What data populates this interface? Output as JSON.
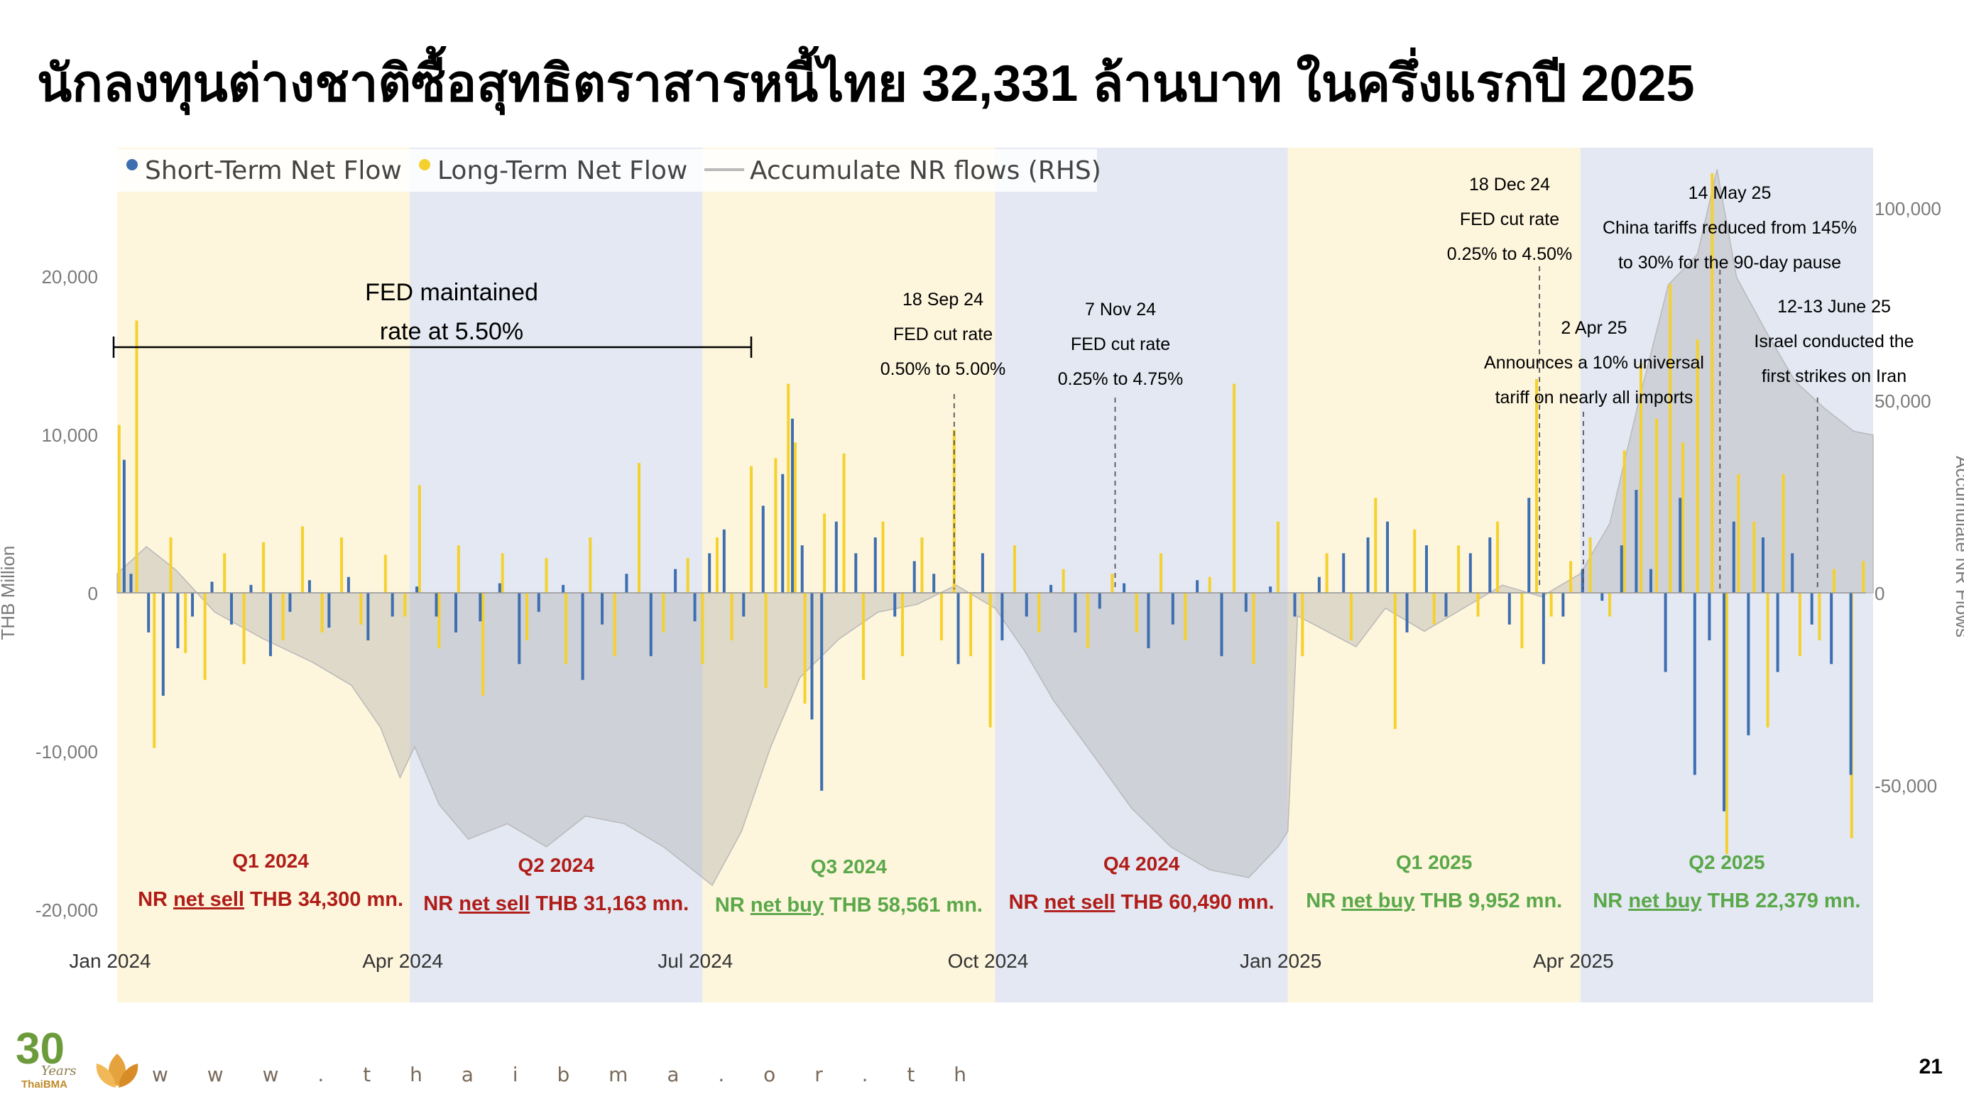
{
  "slide": {
    "title": "นักลงทุนต่างชาติซื้อสุทธิตราสารหนี้ไทย 32,331 ล้านบาท ในครึ่งแรกปี 2025",
    "footer_url": "w w w . t h a i b m a . o r . t h",
    "page_number": "21",
    "logo_number": "30",
    "logo_word": "Years",
    "logo_brand": "ThaiBMA"
  },
  "colors": {
    "short_term": "#3d6eb0",
    "long_term": "#f5d12e",
    "accumulate_line": "#b9b9b9",
    "accumulate_fill": "#a7a7a7",
    "band_yellow": "#fdf5dc",
    "band_blue": "#e3e8f3",
    "sell_red": "#b01d18",
    "buy_green": "#5aa849",
    "axis_text": "#7a7a7a"
  },
  "chart_data": {
    "type": "bar",
    "legend_position": "top-left",
    "legend": [
      "Short-Term Net Flow",
      "Long-Term Net Flow",
      "Accumulate NR flows (RHS)"
    ],
    "ylabel": "THB Million",
    "y2label": "Accumulate NR Flows",
    "ylim": [
      -20000,
      27000
    ],
    "y2lim": [
      -80000,
      110000
    ],
    "y_ticks": [
      "-20,000",
      "-10,000",
      "0",
      "10,000",
      "20,000"
    ],
    "y_tick_values": [
      -20000,
      -10000,
      0,
      10000,
      20000
    ],
    "y2_ticks": [
      "-50,000",
      "0",
      "50,000",
      "100,000"
    ],
    "y2_tick_values": [
      -50000,
      0,
      50000,
      100000
    ],
    "x_ticks": [
      "Jan 2024",
      "Apr 2024",
      "Jul 2024",
      "Oct 2024",
      "Jan 2025",
      "Apr 2025"
    ],
    "x_tick_months": [
      0,
      3,
      6,
      9,
      12,
      15
    ],
    "x_range_months": [
      0,
      18
    ],
    "grid": false,
    "quarters": [
      {
        "label": "Q1 2024",
        "text_prefix": "NR ",
        "text_underlined": "net sell",
        "text_suffix": " THB 34,300 mn.",
        "trend": "sell",
        "start": 0,
        "end": 3,
        "band": "yellow"
      },
      {
        "label": "Q2 2024",
        "text_prefix": "NR ",
        "text_underlined": "net sell",
        "text_suffix": " THB 31,163 mn.",
        "trend": "sell",
        "start": 3,
        "end": 6,
        "band": "blue"
      },
      {
        "label": "Q3 2024",
        "text_prefix": "NR ",
        "text_underlined": "net buy",
        "text_suffix": " THB 58,561 mn.",
        "trend": "buy",
        "start": 6,
        "end": 9,
        "band": "yellow"
      },
      {
        "label": "Q4 2024",
        "text_prefix": "NR ",
        "text_underlined": "net sell",
        "text_suffix": " THB 60,490 mn.",
        "trend": "sell",
        "start": 9,
        "end": 12,
        "band": "blue"
      },
      {
        "label": "Q1 2025",
        "text_prefix": "NR ",
        "text_underlined": "net buy",
        "text_suffix": " THB 9,952 mn.",
        "trend": "buy",
        "start": 12,
        "end": 15,
        "band": "yellow"
      },
      {
        "label": "Q2 2025",
        "text_prefix": "NR ",
        "text_underlined": "net buy",
        "text_suffix": " THB 22,379 mn.",
        "trend": "buy",
        "start": 15,
        "end": 18,
        "band": "blue"
      }
    ],
    "fed_range": {
      "start": 0,
      "end": 6,
      "lines": [
        "FED maintained",
        "rate at 5.50%"
      ]
    },
    "annotations": [
      {
        "month": 8.58,
        "lines": [
          "18 Sep 24",
          "FED cut rate",
          "0.50% to 5.00%"
        ]
      },
      {
        "month": 10.23,
        "lines": [
          "7 Nov 24",
          "FED cut rate",
          "0.25% to 4.75%"
        ]
      },
      {
        "month": 14.58,
        "lines": [
          "18 Dec 24",
          "FED cut rate",
          "0.25% to 4.50%"
        ]
      },
      {
        "month": 15.03,
        "lines": [
          "2 Apr 25",
          "Announces a 10% universal",
          "tariff on nearly all imports"
        ]
      },
      {
        "month": 16.43,
        "lines": [
          "14 May 25",
          "China tariffs reduced from 145%",
          "to 30% for the 90-day pause"
        ]
      },
      {
        "month": 17.43,
        "lines": [
          "12-13 June 25",
          "Israel conducted the",
          "first strikes on Iran"
        ]
      }
    ],
    "short_term_series": [
      {
        "month": 0.05,
        "value": 8400
      },
      {
        "month": 0.12,
        "value": 1200
      },
      {
        "month": 0.3,
        "value": -2500
      },
      {
        "month": 0.45,
        "value": -6500
      },
      {
        "month": 0.6,
        "value": -3500
      },
      {
        "month": 0.75,
        "value": -1500
      },
      {
        "month": 0.95,
        "value": 700
      },
      {
        "month": 1.15,
        "value": -2000
      },
      {
        "month": 1.35,
        "value": 500
      },
      {
        "month": 1.55,
        "value": -4000
      },
      {
        "month": 1.75,
        "value": -1200
      },
      {
        "month": 1.95,
        "value": 800
      },
      {
        "month": 2.15,
        "value": -2200
      },
      {
        "month": 2.35,
        "value": 1000
      },
      {
        "month": 2.55,
        "value": -3000
      },
      {
        "month": 2.8,
        "value": -1500
      },
      {
        "month": 3.05,
        "value": 400
      },
      {
        "month": 3.25,
        "value": -1500
      },
      {
        "month": 3.45,
        "value": -2500
      },
      {
        "month": 3.7,
        "value": -1800
      },
      {
        "month": 3.9,
        "value": 600
      },
      {
        "month": 4.1,
        "value": -4500
      },
      {
        "month": 4.3,
        "value": -1200
      },
      {
        "month": 4.55,
        "value": 500
      },
      {
        "month": 4.75,
        "value": -5500
      },
      {
        "month": 4.95,
        "value": -2000
      },
      {
        "month": 5.2,
        "value": 1200
      },
      {
        "month": 5.45,
        "value": -4000
      },
      {
        "month": 5.7,
        "value": 1500
      },
      {
        "month": 5.9,
        "value": -1800
      },
      {
        "month": 6.05,
        "value": 2500
      },
      {
        "month": 6.2,
        "value": 4000
      },
      {
        "month": 6.4,
        "value": -1500
      },
      {
        "month": 6.6,
        "value": 5500
      },
      {
        "month": 6.8,
        "value": 7500
      },
      {
        "month": 6.9,
        "value": 11000
      },
      {
        "month": 7.0,
        "value": 3000
      },
      {
        "month": 7.1,
        "value": -8000
      },
      {
        "month": 7.2,
        "value": -12500
      },
      {
        "month": 7.35,
        "value": 4500
      },
      {
        "month": 7.55,
        "value": 2500
      },
      {
        "month": 7.75,
        "value": 3500
      },
      {
        "month": 7.95,
        "value": -1500
      },
      {
        "month": 8.15,
        "value": 2000
      },
      {
        "month": 8.35,
        "value": 1200
      },
      {
        "month": 8.6,
        "value": -4500
      },
      {
        "month": 8.85,
        "value": 2500
      },
      {
        "month": 9.05,
        "value": -3000
      },
      {
        "month": 9.3,
        "value": -1500
      },
      {
        "month": 9.55,
        "value": 500
      },
      {
        "month": 9.8,
        "value": -2500
      },
      {
        "month": 10.05,
        "value": -1000
      },
      {
        "month": 10.3,
        "value": 600
      },
      {
        "month": 10.55,
        "value": -3500
      },
      {
        "month": 10.8,
        "value": -2000
      },
      {
        "month": 11.05,
        "value": 800
      },
      {
        "month": 11.3,
        "value": -4000
      },
      {
        "month": 11.55,
        "value": -1200
      },
      {
        "month": 11.8,
        "value": 400
      },
      {
        "month": 12.05,
        "value": -1500
      },
      {
        "month": 12.3,
        "value": 1000
      },
      {
        "month": 12.55,
        "value": 2500
      },
      {
        "month": 12.8,
        "value": 3500
      },
      {
        "month": 13.0,
        "value": 4500
      },
      {
        "month": 13.2,
        "value": -2500
      },
      {
        "month": 13.4,
        "value": 3000
      },
      {
        "month": 13.6,
        "value": -1500
      },
      {
        "month": 13.85,
        "value": 2500
      },
      {
        "month": 14.05,
        "value": 3500
      },
      {
        "month": 14.25,
        "value": -2000
      },
      {
        "month": 14.45,
        "value": 6000
      },
      {
        "month": 14.6,
        "value": -4500
      },
      {
        "month": 14.8,
        "value": -1500
      },
      {
        "month": 15.0,
        "value": 1500
      },
      {
        "month": 15.2,
        "value": -500
      },
      {
        "month": 15.4,
        "value": 3000
      },
      {
        "month": 15.55,
        "value": 6500
      },
      {
        "month": 15.7,
        "value": 1500
      },
      {
        "month": 15.85,
        "value": -5000
      },
      {
        "month": 16.0,
        "value": 6000
      },
      {
        "month": 16.15,
        "value": -11500
      },
      {
        "month": 16.3,
        "value": -3000
      },
      {
        "month": 16.45,
        "value": -13800
      },
      {
        "month": 16.55,
        "value": 4500
      },
      {
        "month": 16.7,
        "value": -9000
      },
      {
        "month": 16.85,
        "value": 3500
      },
      {
        "month": 17.0,
        "value": -5000
      },
      {
        "month": 17.15,
        "value": 2500
      },
      {
        "month": 17.35,
        "value": -2000
      },
      {
        "month": 17.55,
        "value": -4500
      },
      {
        "month": 17.75,
        "value": -11500
      }
    ],
    "long_term_series": [
      {
        "month": 0.02,
        "value": 10600
      },
      {
        "month": 0.2,
        "value": 17200
      },
      {
        "month": 0.38,
        "value": -9800
      },
      {
        "month": 0.55,
        "value": 3500
      },
      {
        "month": 0.7,
        "value": -3800
      },
      {
        "month": 0.9,
        "value": -5500
      },
      {
        "month": 1.1,
        "value": 2500
      },
      {
        "month": 1.3,
        "value": -4500
      },
      {
        "month": 1.5,
        "value": 3200
      },
      {
        "month": 1.7,
        "value": -3000
      },
      {
        "month": 1.9,
        "value": 4200
      },
      {
        "month": 2.1,
        "value": -2500
      },
      {
        "month": 2.3,
        "value": 3500
      },
      {
        "month": 2.5,
        "value": -2000
      },
      {
        "month": 2.75,
        "value": 2400
      },
      {
        "month": 2.95,
        "value": -1500
      },
      {
        "month": 3.1,
        "value": 6800
      },
      {
        "month": 3.3,
        "value": -3500
      },
      {
        "month": 3.5,
        "value": 3000
      },
      {
        "month": 3.75,
        "value": -6500
      },
      {
        "month": 3.95,
        "value": 2500
      },
      {
        "month": 4.2,
        "value": -3000
      },
      {
        "month": 4.4,
        "value": 2200
      },
      {
        "month": 4.6,
        "value": -4500
      },
      {
        "month": 4.85,
        "value": 3500
      },
      {
        "month": 5.1,
        "value": -4000
      },
      {
        "month": 5.35,
        "value": 8200
      },
      {
        "month": 5.6,
        "value": -2500
      },
      {
        "month": 5.85,
        "value": 2200
      },
      {
        "month": 6.0,
        "value": -4500
      },
      {
        "month": 6.15,
        "value": 3500
      },
      {
        "month": 6.3,
        "value": -3000
      },
      {
        "month": 6.5,
        "value": 8000
      },
      {
        "month": 6.65,
        "value": -6000
      },
      {
        "month": 6.75,
        "value": 8500
      },
      {
        "month": 6.88,
        "value": 13200
      },
      {
        "month": 6.95,
        "value": 9500
      },
      {
        "month": 7.05,
        "value": -7000
      },
      {
        "month": 7.25,
        "value": 5000
      },
      {
        "month": 7.45,
        "value": 8800
      },
      {
        "month": 7.65,
        "value": -5500
      },
      {
        "month": 7.85,
        "value": 4500
      },
      {
        "month": 8.05,
        "value": -4000
      },
      {
        "month": 8.25,
        "value": 3500
      },
      {
        "month": 8.45,
        "value": -3000
      },
      {
        "month": 8.58,
        "value": 10300
      },
      {
        "month": 8.75,
        "value": -4000
      },
      {
        "month": 8.95,
        "value": -8500
      },
      {
        "month": 9.2,
        "value": 3000
      },
      {
        "month": 9.45,
        "value": -2500
      },
      {
        "month": 9.7,
        "value": 1500
      },
      {
        "month": 9.95,
        "value": -3500
      },
      {
        "month": 10.2,
        "value": 1200
      },
      {
        "month": 10.45,
        "value": -2500
      },
      {
        "month": 10.7,
        "value": 2500
      },
      {
        "month": 10.95,
        "value": -3000
      },
      {
        "month": 11.2,
        "value": 1000
      },
      {
        "month": 11.45,
        "value": 13200
      },
      {
        "month": 11.65,
        "value": -4500
      },
      {
        "month": 11.9,
        "value": 4500
      },
      {
        "month": 12.15,
        "value": -4000
      },
      {
        "month": 12.4,
        "value": 2500
      },
      {
        "month": 12.65,
        "value": -3000
      },
      {
        "month": 12.9,
        "value": 6000
      },
      {
        "month": 13.1,
        "value": -8600
      },
      {
        "month": 13.3,
        "value": 4000
      },
      {
        "month": 13.5,
        "value": -2000
      },
      {
        "month": 13.75,
        "value": 3000
      },
      {
        "month": 13.95,
        "value": -1500
      },
      {
        "month": 14.15,
        "value": 4500
      },
      {
        "month": 14.4,
        "value": -3500
      },
      {
        "month": 14.55,
        "value": 13500
      },
      {
        "month": 14.7,
        "value": -1500
      },
      {
        "month": 14.9,
        "value": 2000
      },
      {
        "month": 15.1,
        "value": 3500
      },
      {
        "month": 15.3,
        "value": -1500
      },
      {
        "month": 15.45,
        "value": 9000
      },
      {
        "month": 15.62,
        "value": 14500
      },
      {
        "month": 15.78,
        "value": 11000
      },
      {
        "month": 15.92,
        "value": 19500
      },
      {
        "month": 16.05,
        "value": 9500
      },
      {
        "month": 16.2,
        "value": 16000
      },
      {
        "month": 16.35,
        "value": 26500
      },
      {
        "month": 16.5,
        "value": -16500
      },
      {
        "month": 16.62,
        "value": 7500
      },
      {
        "month": 16.78,
        "value": 4500
      },
      {
        "month": 16.92,
        "value": -8500
      },
      {
        "month": 17.08,
        "value": 7500
      },
      {
        "month": 17.25,
        "value": -4000
      },
      {
        "month": 17.45,
        "value": -3000
      },
      {
        "month": 17.6,
        "value": 1500
      },
      {
        "month": 17.78,
        "value": -15500
      },
      {
        "month": 17.9,
        "value": 2000
      }
    ],
    "accumulate_series": [
      {
        "month": 0,
        "value": 5000
      },
      {
        "month": 0.3,
        "value": 12000
      },
      {
        "month": 0.6,
        "value": 6000
      },
      {
        "month": 1.0,
        "value": -5000
      },
      {
        "month": 1.5,
        "value": -12000
      },
      {
        "month": 2.0,
        "value": -18000
      },
      {
        "month": 2.4,
        "value": -24000
      },
      {
        "month": 2.7,
        "value": -35000
      },
      {
        "month": 2.9,
        "value": -48000
      },
      {
        "month": 3.05,
        "value": -40000
      },
      {
        "month": 3.3,
        "value": -55000
      },
      {
        "month": 3.6,
        "value": -64000
      },
      {
        "month": 4.0,
        "value": -60000
      },
      {
        "month": 4.4,
        "value": -66000
      },
      {
        "month": 4.8,
        "value": -58000
      },
      {
        "month": 5.2,
        "value": -60000
      },
      {
        "month": 5.6,
        "value": -66000
      },
      {
        "month": 5.9,
        "value": -72000
      },
      {
        "month": 6.1,
        "value": -76000
      },
      {
        "month": 6.4,
        "value": -62000
      },
      {
        "month": 6.7,
        "value": -40000
      },
      {
        "month": 7.0,
        "value": -22000
      },
      {
        "month": 7.4,
        "value": -12000
      },
      {
        "month": 7.8,
        "value": -5000
      },
      {
        "month": 8.2,
        "value": -3000
      },
      {
        "month": 8.6,
        "value": 2000
      },
      {
        "month": 9.0,
        "value": -4000
      },
      {
        "month": 9.3,
        "value": -15000
      },
      {
        "month": 9.6,
        "value": -28000
      },
      {
        "month": 10.0,
        "value": -42000
      },
      {
        "month": 10.4,
        "value": -56000
      },
      {
        "month": 10.8,
        "value": -66000
      },
      {
        "month": 11.2,
        "value": -72000
      },
      {
        "month": 11.6,
        "value": -74000
      },
      {
        "month": 11.9,
        "value": -66000
      },
      {
        "month": 12.0,
        "value": -62000
      },
      {
        "month": 12.1,
        "value": -6000
      },
      {
        "month": 12.4,
        "value": -10000
      },
      {
        "month": 12.7,
        "value": -14000
      },
      {
        "month": 13.0,
        "value": -4000
      },
      {
        "month": 13.4,
        "value": -10000
      },
      {
        "month": 13.8,
        "value": -4000
      },
      {
        "month": 14.2,
        "value": 2000
      },
      {
        "month": 14.6,
        "value": -1000
      },
      {
        "month": 15.0,
        "value": 5000
      },
      {
        "month": 15.3,
        "value": 18000
      },
      {
        "month": 15.6,
        "value": 50000
      },
      {
        "month": 15.9,
        "value": 80000
      },
      {
        "month": 16.2,
        "value": 88000
      },
      {
        "month": 16.4,
        "value": 110000
      },
      {
        "month": 16.6,
        "value": 82000
      },
      {
        "month": 16.9,
        "value": 68000
      },
      {
        "month": 17.2,
        "value": 55000
      },
      {
        "month": 17.5,
        "value": 48000
      },
      {
        "month": 17.8,
        "value": 42000
      },
      {
        "month": 18.0,
        "value": 41000
      }
    ]
  }
}
